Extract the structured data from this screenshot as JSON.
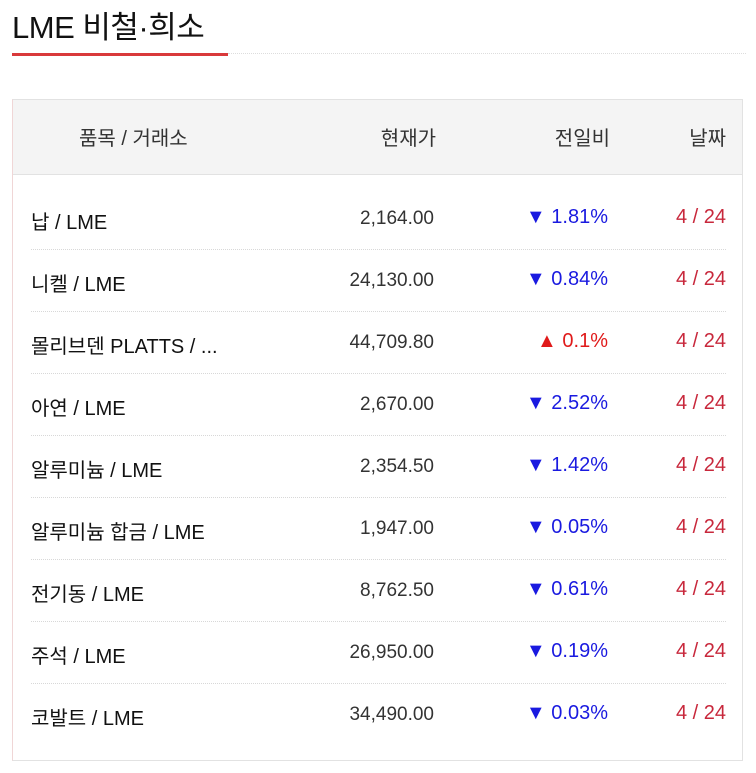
{
  "title": "LME 비철·희소",
  "colors": {
    "accent": "#d9393b",
    "down": "#1a1ae0",
    "up": "#e01a1a",
    "date": "#c8283c"
  },
  "header": {
    "name": "품목 / 거래소",
    "price": "현재가",
    "change": "전일비",
    "date": "날짜"
  },
  "rows": [
    {
      "name": "납 / LME",
      "price": "2,164.00",
      "dir": "down",
      "arrow": "▼",
      "change": "1.81%",
      "date": "4 / 24"
    },
    {
      "name": "니켈 / LME",
      "price": "24,130.00",
      "dir": "down",
      "arrow": "▼",
      "change": "0.84%",
      "date": "4 / 24"
    },
    {
      "name": "몰리브덴 PLATTS / ...",
      "price": "44,709.80",
      "dir": "up",
      "arrow": "▲",
      "change": "0.1%",
      "date": "4 / 24"
    },
    {
      "name": "아연 / LME",
      "price": "2,670.00",
      "dir": "down",
      "arrow": "▼",
      "change": "2.52%",
      "date": "4 / 24"
    },
    {
      "name": "알루미늄 / LME",
      "price": "2,354.50",
      "dir": "down",
      "arrow": "▼",
      "change": "1.42%",
      "date": "4 / 24"
    },
    {
      "name": "알루미늄 합금 / LME",
      "price": "1,947.00",
      "dir": "down",
      "arrow": "▼",
      "change": "0.05%",
      "date": "4 / 24"
    },
    {
      "name": "전기동 / LME",
      "price": "8,762.50",
      "dir": "down",
      "arrow": "▼",
      "change": "0.61%",
      "date": "4 / 24"
    },
    {
      "name": "주석 / LME",
      "price": "26,950.00",
      "dir": "down",
      "arrow": "▼",
      "change": "0.19%",
      "date": "4 / 24"
    },
    {
      "name": "코발트 / LME",
      "price": "34,490.00",
      "dir": "down",
      "arrow": "▼",
      "change": "0.03%",
      "date": "4 / 24"
    }
  ]
}
